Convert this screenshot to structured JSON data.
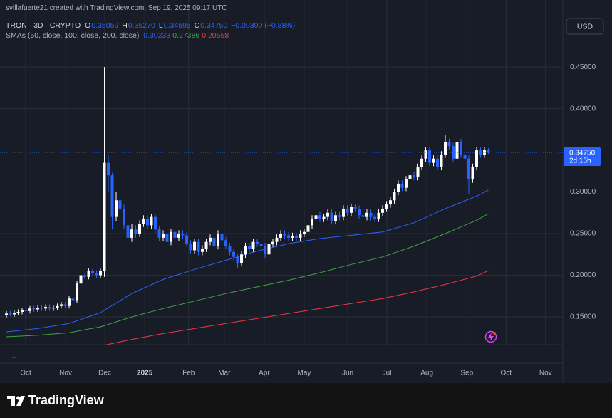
{
  "header": {
    "credit": "svillafuerte21 created with TradingView.com, Sep 19, 2025 09:17 UTC"
  },
  "chart_data": {
    "type": "candlestick",
    "legend": {
      "symbol": "TRON · 3D · CRYPTO",
      "fields": [
        {
          "key": "O",
          "value": "0.35059"
        },
        {
          "key": "H",
          "value": "0.35270"
        },
        {
          "key": "L",
          "value": "0.34595"
        },
        {
          "key": "C",
          "value": "0.34750"
        }
      ],
      "change": "−0.00309 (−0.88%)",
      "sma_title": "SMAs (50, close, 100, close, 200, close)"
    },
    "currency": "USD",
    "countdown": "2d 15h",
    "more": "...",
    "up_color": "#ffffff",
    "down_color": "#2962ff",
    "grid": true,
    "xlim": [
      -1.64,
      142
    ],
    "ylim": [
      0.0944,
      0.5305
    ],
    "xticks": [
      {
        "value": 4.9,
        "label": "Oct"
      },
      {
        "value": 15.1,
        "label": "Nov"
      },
      {
        "value": 25.1,
        "label": "Dec"
      },
      {
        "value": 35.3,
        "label": "2025"
      },
      {
        "value": 46.5,
        "label": "Feb"
      },
      {
        "value": 55.6,
        "label": "Mar"
      },
      {
        "value": 65.8,
        "label": "Apr"
      },
      {
        "value": 76,
        "label": "May"
      },
      {
        "value": 87.1,
        "label": "Jun"
      },
      {
        "value": 97.1,
        "label": "Jul"
      },
      {
        "value": 107.3,
        "label": "Aug"
      },
      {
        "value": 117.5,
        "label": "Sep"
      },
      {
        "value": 127.5,
        "label": "Oct"
      },
      {
        "value": 137.6,
        "label": "Nov"
      }
    ],
    "yticks": [
      {
        "value": 0.15,
        "label": "0.15000"
      },
      {
        "value": 0.2,
        "label": "0.20000"
      },
      {
        "value": 0.25,
        "label": "0.25000"
      },
      {
        "value": 0.3,
        "label": "0.30000"
      },
      {
        "value": 0.4,
        "label": "0.40000"
      },
      {
        "value": 0.45,
        "label": "0.45000"
      }
    ],
    "open": [
      0.152,
      0.154,
      0.153,
      0.155,
      0.156,
      0.158,
      0.157,
      0.16,
      0.159,
      0.161,
      0.16,
      0.162,
      0.16,
      0.161,
      0.163,
      0.165,
      0.163,
      0.172,
      0.17,
      0.19,
      0.2,
      0.198,
      0.205,
      0.203,
      0.2,
      0.205,
      0.335,
      0.32,
      0.27,
      0.29,
      0.28,
      0.26,
      0.245,
      0.255,
      0.25,
      0.262,
      0.268,
      0.26,
      0.27,
      0.255,
      0.245,
      0.25,
      0.24,
      0.252,
      0.245,
      0.25,
      0.248,
      0.238,
      0.23,
      0.24,
      0.228,
      0.232,
      0.24,
      0.245,
      0.235,
      0.25,
      0.242,
      0.235,
      0.228,
      0.222,
      0.215,
      0.225,
      0.235,
      0.232,
      0.24,
      0.238,
      0.235,
      0.225,
      0.238,
      0.24,
      0.245,
      0.25,
      0.248,
      0.245,
      0.247,
      0.245,
      0.25,
      0.252,
      0.26,
      0.268,
      0.272,
      0.268,
      0.27,
      0.275,
      0.265,
      0.272,
      0.27,
      0.28,
      0.275,
      0.282,
      0.28,
      0.272,
      0.27,
      0.275,
      0.27,
      0.268,
      0.275,
      0.28,
      0.285,
      0.29,
      0.3,
      0.31,
      0.305,
      0.315,
      0.32,
      0.318,
      0.33,
      0.34,
      0.35,
      0.335,
      0.34,
      0.33,
      0.345,
      0.36,
      0.355,
      0.34,
      0.36,
      0.345,
      0.34,
      0.315,
      0.33,
      0.35,
      0.345,
      0.35059
    ],
    "high": [
      0.157,
      0.157,
      0.158,
      0.159,
      0.161,
      0.161,
      0.163,
      0.163,
      0.164,
      0.164,
      0.165,
      0.165,
      0.164,
      0.166,
      0.168,
      0.168,
      0.175,
      0.175,
      0.193,
      0.203,
      0.203,
      0.208,
      0.208,
      0.206,
      0.208,
      0.45,
      0.345,
      0.323,
      0.3,
      0.3,
      0.285,
      0.265,
      0.262,
      0.26,
      0.266,
      0.272,
      0.272,
      0.274,
      0.274,
      0.259,
      0.254,
      0.254,
      0.256,
      0.256,
      0.254,
      0.254,
      0.252,
      0.242,
      0.244,
      0.244,
      0.236,
      0.244,
      0.249,
      0.249,
      0.254,
      0.254,
      0.246,
      0.239,
      0.232,
      0.226,
      0.229,
      0.239,
      0.239,
      0.244,
      0.244,
      0.242,
      0.239,
      0.242,
      0.244,
      0.249,
      0.254,
      0.254,
      0.252,
      0.251,
      0.251,
      0.254,
      0.256,
      0.264,
      0.272,
      0.276,
      0.276,
      0.274,
      0.279,
      0.279,
      0.276,
      0.276,
      0.284,
      0.284,
      0.286,
      0.286,
      0.284,
      0.276,
      0.279,
      0.279,
      0.274,
      0.279,
      0.284,
      0.289,
      0.294,
      0.304,
      0.314,
      0.314,
      0.319,
      0.324,
      0.324,
      0.334,
      0.344,
      0.354,
      0.354,
      0.344,
      0.344,
      0.349,
      0.368,
      0.364,
      0.359,
      0.368,
      0.364,
      0.349,
      0.344,
      0.334,
      0.354,
      0.354,
      0.354,
      0.3527
    ],
    "low": [
      0.149,
      0.151,
      0.15,
      0.152,
      0.153,
      0.154,
      0.154,
      0.156,
      0.156,
      0.157,
      0.157,
      0.157,
      0.157,
      0.158,
      0.16,
      0.16,
      0.16,
      0.167,
      0.167,
      0.187,
      0.195,
      0.195,
      0.2,
      0.197,
      0.197,
      0.198,
      0.3,
      0.255,
      0.265,
      0.275,
      0.255,
      0.24,
      0.24,
      0.245,
      0.246,
      0.258,
      0.256,
      0.256,
      0.251,
      0.241,
      0.241,
      0.236,
      0.236,
      0.241,
      0.241,
      0.244,
      0.234,
      0.226,
      0.226,
      0.224,
      0.224,
      0.228,
      0.236,
      0.231,
      0.231,
      0.238,
      0.231,
      0.224,
      0.218,
      0.208,
      0.211,
      0.221,
      0.228,
      0.228,
      0.234,
      0.231,
      0.22,
      0.221,
      0.234,
      0.236,
      0.241,
      0.244,
      0.241,
      0.241,
      0.241,
      0.241,
      0.246,
      0.248,
      0.256,
      0.264,
      0.264,
      0.264,
      0.266,
      0.261,
      0.261,
      0.266,
      0.266,
      0.271,
      0.271,
      0.276,
      0.268,
      0.262,
      0.266,
      0.266,
      0.264,
      0.264,
      0.271,
      0.276,
      0.281,
      0.286,
      0.296,
      0.301,
      0.301,
      0.311,
      0.314,
      0.314,
      0.326,
      0.336,
      0.331,
      0.331,
      0.326,
      0.326,
      0.341,
      0.351,
      0.336,
      0.336,
      0.341,
      0.336,
      0.298,
      0.311,
      0.326,
      0.341,
      0.341,
      0.34595
    ],
    "close": [
      0.154,
      0.153,
      0.155,
      0.156,
      0.158,
      0.157,
      0.16,
      0.159,
      0.161,
      0.16,
      0.162,
      0.16,
      0.161,
      0.163,
      0.165,
      0.163,
      0.172,
      0.17,
      0.19,
      0.2,
      0.198,
      0.205,
      0.203,
      0.2,
      0.205,
      0.335,
      0.32,
      0.27,
      0.29,
      0.28,
      0.26,
      0.245,
      0.255,
      0.25,
      0.262,
      0.268,
      0.26,
      0.27,
      0.255,
      0.245,
      0.25,
      0.24,
      0.252,
      0.245,
      0.25,
      0.248,
      0.238,
      0.23,
      0.24,
      0.228,
      0.232,
      0.24,
      0.245,
      0.235,
      0.25,
      0.242,
      0.235,
      0.228,
      0.222,
      0.215,
      0.225,
      0.235,
      0.232,
      0.24,
      0.238,
      0.235,
      0.225,
      0.238,
      0.24,
      0.245,
      0.25,
      0.248,
      0.245,
      0.247,
      0.245,
      0.25,
      0.252,
      0.26,
      0.268,
      0.272,
      0.268,
      0.27,
      0.275,
      0.265,
      0.272,
      0.27,
      0.28,
      0.275,
      0.282,
      0.28,
      0.272,
      0.27,
      0.275,
      0.27,
      0.268,
      0.275,
      0.28,
      0.285,
      0.29,
      0.3,
      0.31,
      0.305,
      0.315,
      0.32,
      0.318,
      0.33,
      0.34,
      0.35,
      0.335,
      0.34,
      0.33,
      0.345,
      0.36,
      0.355,
      0.34,
      0.36,
      0.345,
      0.34,
      0.315,
      0.33,
      0.35,
      0.345,
      0.35,
      0.3475
    ],
    "sma_x": [
      0,
      8,
      16,
      24,
      32,
      40,
      48,
      56,
      64,
      72,
      80,
      88,
      96,
      104,
      112,
      120,
      123
    ],
    "series": [
      {
        "color": "#2962ff",
        "values": [
          0.132,
          0.136,
          0.142,
          0.155,
          0.178,
          0.195,
          0.207,
          0.218,
          0.229,
          0.238,
          0.244,
          0.248,
          0.252,
          0.263,
          0.28,
          0.295,
          0.30233
        ]
      },
      {
        "color": "#43a047",
        "values": [
          0.126,
          0.128,
          0.131,
          0.138,
          0.15,
          0.16,
          0.169,
          0.178,
          0.186,
          0.194,
          0.203,
          0.213,
          0.222,
          0.235,
          0.25,
          0.266,
          0.27386
        ]
      },
      {
        "color": "#f23645",
        "values": [
          null,
          null,
          null,
          0.115,
          0.123,
          0.13,
          0.136,
          0.142,
          0.148,
          0.154,
          0.16,
          0.166,
          0.172,
          0.18,
          0.189,
          0.199,
          0.20558
        ]
      }
    ]
  },
  "footer": {
    "brand": "TradingView"
  }
}
